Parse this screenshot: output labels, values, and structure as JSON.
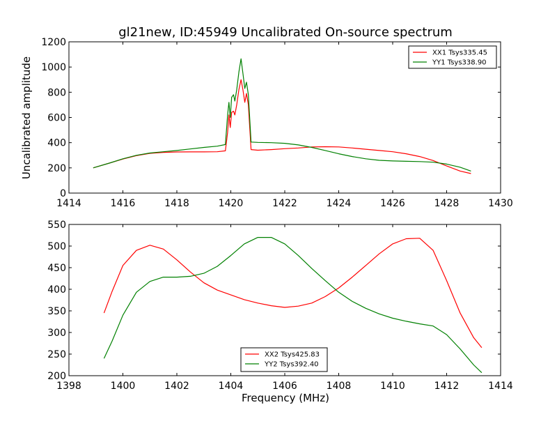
{
  "chart_data": [
    {
      "type": "line",
      "title": "gl21new, ID:45949 Uncalibrated On-source spectrum",
      "xlabel": "",
      "ylabel": "Uncalibrated amplitude",
      "xlim": [
        1414,
        1430
      ],
      "ylim": [
        0,
        1200
      ],
      "xticks": [
        1414,
        1416,
        1418,
        1420,
        1422,
        1424,
        1426,
        1428,
        1430
      ],
      "yticks": [
        0,
        200,
        400,
        600,
        800,
        1000,
        1200
      ],
      "grid": false,
      "legend_position": "top-right",
      "series": [
        {
          "name": "XX1 Tsys335.45",
          "color": "#ff0000",
          "x": [
            1414.9,
            1415.5,
            1416,
            1416.5,
            1417,
            1417.5,
            1418,
            1418.5,
            1419,
            1419.5,
            1419.8,
            1419.88,
            1419.93,
            1419.98,
            1420.03,
            1420.1,
            1420.15,
            1420.22,
            1420.3,
            1420.38,
            1420.45,
            1420.52,
            1420.58,
            1420.65,
            1420.75,
            1421,
            1421.5,
            1422,
            1422.5,
            1423,
            1423.5,
            1424,
            1424.5,
            1425,
            1425.5,
            1426,
            1426.5,
            1427,
            1427.5,
            1428,
            1428.5,
            1428.9
          ],
          "y": [
            200,
            238,
            270,
            297,
            315,
            323,
            326,
            327,
            327,
            328,
            335,
            480,
            620,
            520,
            640,
            650,
            620,
            700,
            820,
            900,
            820,
            720,
            790,
            700,
            345,
            340,
            345,
            352,
            358,
            366,
            368,
            366,
            358,
            348,
            338,
            328,
            312,
            290,
            258,
            215,
            175,
            155
          ]
        },
        {
          "name": "YY1 Tsys338.90",
          "color": "#008000",
          "x": [
            1414.9,
            1415.5,
            1416,
            1416.5,
            1417,
            1417.5,
            1418,
            1418.5,
            1419,
            1419.5,
            1419.8,
            1419.88,
            1419.93,
            1419.98,
            1420.03,
            1420.1,
            1420.15,
            1420.22,
            1420.3,
            1420.38,
            1420.45,
            1420.52,
            1420.58,
            1420.65,
            1420.75,
            1421,
            1421.5,
            1422,
            1422.5,
            1423,
            1423.5,
            1424,
            1424.5,
            1425,
            1425.5,
            1426,
            1426.5,
            1427,
            1427.5,
            1428,
            1428.5,
            1428.9
          ],
          "y": [
            200,
            238,
            272,
            300,
            318,
            328,
            338,
            350,
            362,
            372,
            385,
            620,
            720,
            600,
            760,
            780,
            730,
            820,
            960,
            1065,
            950,
            830,
            880,
            780,
            405,
            402,
            400,
            395,
            382,
            362,
            338,
            312,
            290,
            272,
            260,
            255,
            252,
            250,
            245,
            230,
            205,
            175
          ]
        }
      ]
    },
    {
      "type": "line",
      "title": "",
      "xlabel": "Frequency (MHz)",
      "ylabel": "",
      "xlim": [
        1398,
        1414
      ],
      "ylim": [
        200,
        550
      ],
      "xticks": [
        1398,
        1400,
        1402,
        1404,
        1406,
        1408,
        1410,
        1412,
        1414
      ],
      "yticks": [
        200,
        250,
        300,
        350,
        400,
        450,
        500,
        550
      ],
      "grid": false,
      "legend_position": "bottom-center",
      "series": [
        {
          "name": "XX2 Tsys425.83",
          "color": "#ff0000",
          "x": [
            1399.3,
            1399.6,
            1400,
            1400.5,
            1401,
            1401.5,
            1402,
            1402.5,
            1403,
            1403.5,
            1404,
            1404.5,
            1405,
            1405.5,
            1406,
            1406.5,
            1407,
            1407.5,
            1408,
            1408.5,
            1409,
            1409.5,
            1410,
            1410.5,
            1411,
            1411.5,
            1412,
            1412.5,
            1413,
            1413.3
          ],
          "y": [
            345,
            395,
            455,
            490,
            502,
            493,
            468,
            440,
            415,
            398,
            387,
            376,
            368,
            362,
            358,
            361,
            368,
            383,
            403,
            428,
            455,
            482,
            505,
            517,
            518,
            490,
            420,
            345,
            288,
            265
          ]
        },
        {
          "name": "YY2 Tsys392.40",
          "color": "#008000",
          "x": [
            1399.3,
            1399.6,
            1400,
            1400.5,
            1401,
            1401.5,
            1402,
            1402.5,
            1403,
            1403.5,
            1404,
            1404.5,
            1405,
            1405.5,
            1406,
            1406.5,
            1407,
            1407.5,
            1408,
            1408.5,
            1409,
            1409.5,
            1410,
            1410.5,
            1411,
            1411.5,
            1412,
            1412.5,
            1413,
            1413.3
          ],
          "y": [
            240,
            280,
            340,
            393,
            418,
            428,
            428,
            430,
            437,
            453,
            478,
            505,
            520,
            520,
            505,
            478,
            448,
            420,
            393,
            372,
            356,
            343,
            333,
            326,
            320,
            315,
            295,
            262,
            225,
            207
          ]
        }
      ]
    }
  ]
}
